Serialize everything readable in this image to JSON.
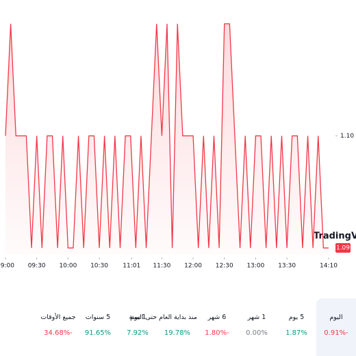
{
  "chart_data": {
    "type": "line",
    "x": [
      0,
      5,
      10,
      15,
      20,
      25,
      30,
      35,
      40,
      45,
      50,
      55,
      60,
      65,
      70,
      75,
      80,
      85,
      90,
      95,
      100,
      105,
      110,
      115,
      120,
      125,
      130,
      135,
      140,
      145,
      150,
      155,
      160,
      165,
      170,
      175,
      180,
      185,
      190,
      195,
      200,
      205,
      210,
      215,
      220,
      225,
      230,
      235,
      240,
      245,
      250,
      255,
      260,
      265,
      270,
      275,
      280,
      285,
      290,
      295,
      300,
      305,
      310
    ],
    "series": [
      {
        "name": null,
        "color": "#f23645",
        "values": [
          1.1,
          1.11,
          1.1,
          1.1,
          1.1,
          1.09,
          1.1,
          1.09,
          1.1,
          1.1,
          1.09,
          1.1,
          1.09,
          1.09,
          1.1,
          1.09,
          1.1,
          1.1,
          1.09,
          1.1,
          1.09,
          1.1,
          1.09,
          1.1,
          1.1,
          1.09,
          1.1,
          1.09,
          1.1,
          1.11,
          1.1,
          1.11,
          1.09,
          1.11,
          1.1,
          1.1,
          1.1,
          1.09,
          1.1,
          1.09,
          1.1,
          1.09,
          1.11,
          1.11,
          1.1,
          1.09,
          1.1,
          1.09,
          1.1,
          1.1,
          1.09,
          1.1,
          1.09,
          1.1,
          1.09,
          1.1,
          1.1,
          1.09,
          1.1,
          1.09,
          1.1,
          1.09,
          1.09
        ]
      }
    ],
    "xlim": [
      0,
      310
    ],
    "xticks": [
      {
        "value": 0,
        "label": "09:00"
      },
      {
        "value": 30,
        "label": "09:30"
      },
      {
        "value": 60,
        "label": "10:00"
      },
      {
        "value": 90,
        "label": "10:30"
      },
      {
        "value": 121,
        "label": "11:01"
      },
      {
        "value": 150,
        "label": "11:30"
      },
      {
        "value": 180,
        "label": "12:00"
      },
      {
        "value": 210,
        "label": "12:30"
      },
      {
        "value": 240,
        "label": "13:00"
      },
      {
        "value": 270,
        "label": "13:30"
      },
      {
        "value": 310,
        "label": "14:10"
      }
    ],
    "ylim": [
      1.0894,
      1.1109
    ],
    "yticks": [
      {
        "value": 1.1,
        "label": "1.10"
      }
    ],
    "last_label": "1.09",
    "watermark": "TradingView"
  },
  "periods": [
    {
      "name": "اليوم",
      "change": "-0.91%",
      "trend": "down",
      "selected": true
    },
    {
      "name": "5 يوم",
      "change": "1.87%",
      "trend": "up"
    },
    {
      "name": "1 شهر",
      "change": "0.00%",
      "trend": "flat"
    },
    {
      "name": "6 شهر",
      "change": "-1.80%",
      "trend": "down"
    },
    {
      "name": "منذ بداية العام حتى اليوم",
      "change": "19.78%",
      "trend": "up"
    },
    {
      "name": "1 سنة",
      "change": "7.92%",
      "trend": "up"
    },
    {
      "name": "5 سنوات",
      "change": "91.65%",
      "trend": "up"
    },
    {
      "name": "جميع الأوقات",
      "change": "-34.68%",
      "trend": "down"
    }
  ]
}
